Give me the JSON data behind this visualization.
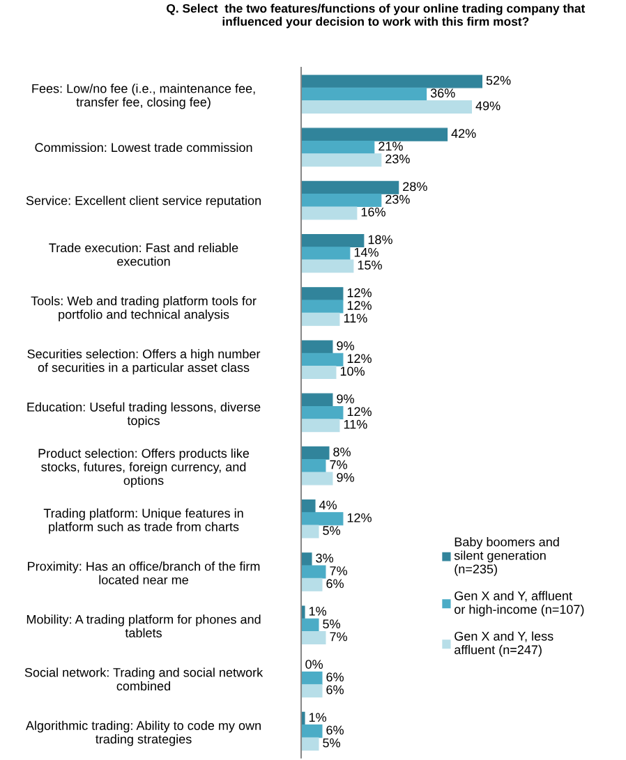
{
  "chart_data": {
    "type": "bar",
    "orientation": "horizontal",
    "title": "Q. Select  the two features/functions of your online trading company that\ninfluenced your decision to work with this firm most?",
    "categories": [
      "Fees: Low/no fee (i.e., maintenance fee,\ntransfer fee, closing fee)",
      "Commission: Lowest trade commission",
      "Service: Excellent client service reputation",
      "Trade execution: Fast and reliable\nexecution",
      "Tools: Web and trading platform tools for\nportfolio and technical analysis",
      "Securities selection: Offers a high number\nof securities in a particular asset class",
      "Education: Useful trading lessons, diverse\ntopics",
      "Product selection: Offers products like\nstocks, futures, foreign currency, and\noptions",
      "Trading platform: Unique features in\nplatform such as trade from charts",
      "Proximity: Has an office/branch of the firm\nlocated near me",
      "Mobility: A trading platform for phones and\ntablets",
      "Social network: Trading and social network\ncombined",
      "Algorithmic trading: Ability to code my own\ntrading strategies"
    ],
    "series": [
      {
        "name": "Baby boomers and\nsilent generation\n(n=235)",
        "color": "#31849b",
        "values": [
          52,
          42,
          28,
          18,
          12,
          9,
          9,
          8,
          4,
          3,
          1,
          0,
          1
        ],
        "value_labels": [
          "52%",
          "42%",
          "28%",
          "18%",
          "12%",
          "9%",
          "9%",
          "8%",
          "4%",
          "3%",
          "1%",
          "0%",
          "1%"
        ]
      },
      {
        "name": "Gen X and Y, affluent\nor high-income (n=107)",
        "color": "#4bacc6",
        "values": [
          36,
          21,
          23,
          14,
          12,
          12,
          12,
          7,
          12,
          7,
          5,
          6,
          6
        ],
        "value_labels": [
          "36%",
          "21%",
          "23%",
          "14%",
          "12%",
          "12%",
          "12%",
          "7%",
          "12%",
          "7%",
          "5%",
          "6%",
          "6%"
        ]
      },
      {
        "name": "Gen X and Y, less\naffluent (n=247)",
        "color": "#b7dee8",
        "values": [
          49,
          23,
          16,
          15,
          11,
          10,
          11,
          9,
          5,
          6,
          7,
          6,
          5
        ],
        "value_labels": [
          "49%",
          "23%",
          "16%",
          "15%",
          "11%",
          "10%",
          "11%",
          "9%",
          "5%",
          "6%",
          "7%",
          "6%",
          "5%"
        ]
      }
    ],
    "legend": "bottom right",
    "grid": false
  }
}
